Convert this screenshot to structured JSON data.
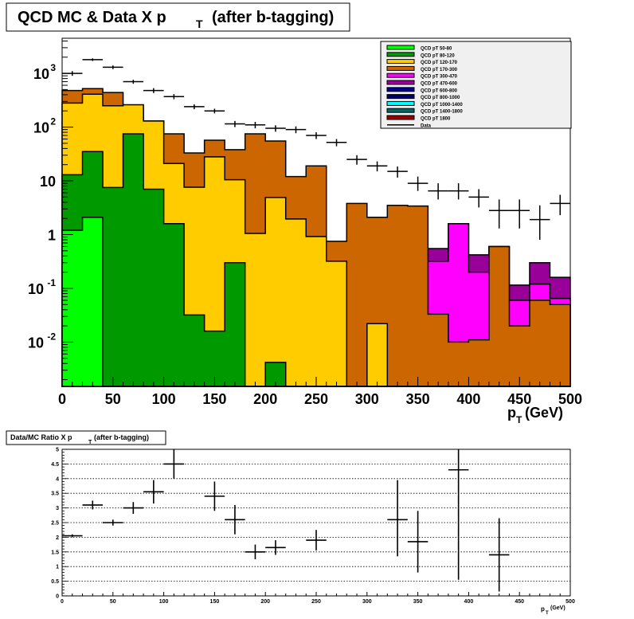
{
  "colors": {
    "background": "#ffffff",
    "frame": "#000000",
    "legend_bg": "#f0f0f0",
    "grid": "#000000"
  },
  "chart_data": [
    {
      "id": "main",
      "type": "area",
      "title": "QCD MC & Data X p",
      "title_sub": "T",
      "title_suffix": "(after b-tagging)",
      "xlabel": "p",
      "xlabel_sub": "T",
      "xlabel_unit": "(GeV)",
      "ylabel": "",
      "log_y": true,
      "stacked": true,
      "grid": false,
      "legend_placement": "top-right",
      "xlim": [
        0,
        500
      ],
      "ylim": [
        0.0015,
        4500
      ],
      "x_ticks": [
        0,
        50,
        100,
        150,
        200,
        250,
        300,
        350,
        400,
        450,
        500
      ],
      "y_ticks": [
        {
          "value": 0.01,
          "base": "10",
          "exp": "-2"
        },
        {
          "value": 0.1,
          "base": "10",
          "exp": "-1"
        },
        {
          "value": 1,
          "base": "1",
          "exp": ""
        },
        {
          "value": 10,
          "base": "10",
          "exp": ""
        },
        {
          "value": 100,
          "base": "10",
          "exp": "2"
        },
        {
          "value": 1000,
          "base": "10",
          "exp": "3"
        }
      ],
      "bin_edges": [
        0,
        20,
        40,
        60,
        80,
        100,
        120,
        140,
        160,
        180,
        200,
        220,
        240,
        260,
        280,
        300,
        320,
        340,
        360,
        380,
        400,
        420,
        440,
        460,
        480,
        500
      ],
      "stack_tops": [
        {
          "name": "QCD pT 50-80",
          "color": "#00ff00",
          "values": [
            1.2,
            2.1,
            0.0015,
            0.0015,
            0.0015,
            0.0015,
            0.0015,
            0.0015,
            0.0015,
            0.0015,
            0.0015,
            0.0015,
            0.0015,
            0.0015,
            0.0015,
            0.0015,
            0.0015,
            0.0015,
            0.0015,
            0.0015,
            0.0015,
            0.0015,
            0.0015,
            0.0015,
            0.0015
          ]
        },
        {
          "name": "QCD pT 80-120",
          "color": "#009900",
          "values": [
            13,
            35,
            7.5,
            75,
            7,
            1.6,
            0.032,
            0.016,
            0.3,
            0.0015,
            0.0042,
            0.0015,
            0.0015,
            0.0015,
            0.0015,
            0.0015,
            0.0015,
            0.0015,
            0.0015,
            0.0015,
            0.0015,
            0.0015,
            0.0015,
            0.0015,
            0.0015
          ]
        },
        {
          "name": "QCD pT 120-170",
          "color": "#ffcc00",
          "values": [
            280,
            410,
            250,
            260,
            130,
            21,
            7.6,
            28,
            10.5,
            1.05,
            4.9,
            1.95,
            0.92,
            0.32,
            0.0015,
            0.022,
            0.0015,
            0.0015,
            0.0015,
            0.0015,
            0.0015,
            0.0015,
            0.0015,
            0.0015,
            0.0015
          ]
        },
        {
          "name": "QCD pT 170-300",
          "color": "#cc6600",
          "values": [
            480,
            520,
            440,
            230,
            130,
            75,
            33,
            57,
            38,
            75,
            55,
            12,
            19,
            0.75,
            3.8,
            2.1,
            3.5,
            3.4,
            0.033,
            0.01,
            0.011,
            0.6,
            0.02,
            0.06,
            0.05
          ]
        },
        {
          "name": "QCD pT 300-470",
          "color": "#ff00ff",
          "values": [
            0,
            0,
            0,
            0,
            0,
            0,
            0,
            0,
            0,
            0,
            0,
            0,
            0,
            0,
            0,
            0,
            0,
            0,
            0.32,
            1.6,
            0.2,
            0.6,
            0.06,
            0.12,
            0.065
          ]
        },
        {
          "name": "QCD pT 470-600",
          "color": "#990099",
          "values": [
            0,
            0,
            0,
            0,
            0,
            0,
            0,
            0,
            0,
            0,
            0,
            0,
            0,
            0,
            0,
            0,
            0,
            0,
            0.55,
            1.6,
            0.42,
            0.6,
            0.115,
            0.3,
            0.16
          ]
        }
      ],
      "legend": [
        {
          "name": "QCD pT 50-80",
          "color": "#00ff00"
        },
        {
          "name": "QCD pT 80-120",
          "color": "#009900"
        },
        {
          "name": "QCD pT 120-170",
          "color": "#ffcc00"
        },
        {
          "name": "QCD pT 170-300",
          "color": "#cc6600"
        },
        {
          "name": "QCD pT 300-470",
          "color": "#ff00ff"
        },
        {
          "name": "QCD pT 470-600",
          "color": "#990099"
        },
        {
          "name": "QCD pT 600-800",
          "color": "#000099"
        },
        {
          "name": "QCD pT 800-1000",
          "color": "#000066"
        },
        {
          "name": "QCD pT 1000-1400",
          "color": "#00ffff"
        },
        {
          "name": "QCD pT 1400-1800",
          "color": "#006666"
        },
        {
          "name": "QCD pT 1800",
          "color": "#990000"
        },
        {
          "name": "Data",
          "color": "#000000",
          "is_line": true
        }
      ],
      "data_points": [
        {
          "x": 10,
          "y": 1000,
          "err_lo": 900,
          "err_hi": 1100
        },
        {
          "x": 30,
          "y": 1800,
          "err_lo": 1700,
          "err_hi": 1900
        },
        {
          "x": 50,
          "y": 1300,
          "err_lo": 1200,
          "err_hi": 1400
        },
        {
          "x": 70,
          "y": 700,
          "err_lo": 640,
          "err_hi": 760
        },
        {
          "x": 90,
          "y": 480,
          "err_lo": 430,
          "err_hi": 530
        },
        {
          "x": 110,
          "y": 370,
          "err_lo": 330,
          "err_hi": 410
        },
        {
          "x": 130,
          "y": 240,
          "err_lo": 215,
          "err_hi": 265
        },
        {
          "x": 150,
          "y": 200,
          "err_lo": 180,
          "err_hi": 220
        },
        {
          "x": 170,
          "y": 115,
          "err_lo": 100,
          "err_hi": 130
        },
        {
          "x": 190,
          "y": 110,
          "err_lo": 95,
          "err_hi": 125
        },
        {
          "x": 210,
          "y": 95,
          "err_lo": 82,
          "err_hi": 108
        },
        {
          "x": 230,
          "y": 90,
          "err_lo": 77,
          "err_hi": 103
        },
        {
          "x": 250,
          "y": 70,
          "err_lo": 60,
          "err_hi": 80
        },
        {
          "x": 270,
          "y": 52,
          "err_lo": 44,
          "err_hi": 60
        },
        {
          "x": 290,
          "y": 25,
          "err_lo": 20,
          "err_hi": 30
        },
        {
          "x": 310,
          "y": 19,
          "err_lo": 15,
          "err_hi": 23
        },
        {
          "x": 330,
          "y": 15,
          "err_lo": 11.5,
          "err_hi": 18.5
        },
        {
          "x": 350,
          "y": 9,
          "err_lo": 6.5,
          "err_hi": 12
        },
        {
          "x": 370,
          "y": 6.5,
          "err_lo": 4.5,
          "err_hi": 9
        },
        {
          "x": 390,
          "y": 6.5,
          "err_lo": 4.5,
          "err_hi": 9
        },
        {
          "x": 410,
          "y": 5,
          "err_lo": 3.2,
          "err_hi": 7
        },
        {
          "x": 430,
          "y": 2.8,
          "err_lo": 1.3,
          "err_hi": 4.5
        },
        {
          "x": 450,
          "y": 2.8,
          "err_lo": 1.3,
          "err_hi": 4.5
        },
        {
          "x": 470,
          "y": 1.9,
          "err_lo": 0.8,
          "err_hi": 3.5
        },
        {
          "x": 490,
          "y": 3.8,
          "err_lo": 2.3,
          "err_hi": 5.5
        }
      ]
    },
    {
      "id": "ratio",
      "type": "scatter",
      "title": "Data/MC Ratio X p",
      "title_sub": "T",
      "title_suffix": "(after b-tagging)",
      "xlabel": "p",
      "xlabel_sub": "T",
      "xlabel_unit": "(GeV)",
      "ylabel": "",
      "grid": true,
      "xlim": [
        0,
        500
      ],
      "ylim": [
        0,
        5
      ],
      "x_ticks": [
        0,
        50,
        100,
        150,
        200,
        250,
        300,
        350,
        400,
        450,
        500
      ],
      "y_ticks": [
        0,
        0.5,
        1,
        1.5,
        2,
        2.5,
        3,
        3.5,
        4,
        4.5,
        5
      ],
      "points": [
        {
          "x": 10,
          "y": 2.05,
          "x_lo": 0,
          "x_hi": 20,
          "err_lo": 2.0,
          "err_hi": 2.1
        },
        {
          "x": 30,
          "y": 3.1,
          "x_lo": 20,
          "x_hi": 40,
          "err_lo": 2.95,
          "err_hi": 3.25
        },
        {
          "x": 50,
          "y": 2.5,
          "x_lo": 40,
          "x_hi": 60,
          "err_lo": 2.4,
          "err_hi": 2.6
        },
        {
          "x": 70,
          "y": 3.0,
          "x_lo": 60,
          "x_hi": 80,
          "err_lo": 2.8,
          "err_hi": 3.2
        },
        {
          "x": 90,
          "y": 3.55,
          "x_lo": 80,
          "x_hi": 100,
          "err_lo": 3.15,
          "err_hi": 3.95
        },
        {
          "x": 110,
          "y": 4.5,
          "x_lo": 100,
          "x_hi": 120,
          "err_lo": 4.0,
          "err_hi": 5.0
        },
        {
          "x": 150,
          "y": 3.4,
          "x_lo": 140,
          "x_hi": 160,
          "err_lo": 2.9,
          "err_hi": 3.9
        },
        {
          "x": 170,
          "y": 2.6,
          "x_lo": 160,
          "x_hi": 180,
          "err_lo": 2.1,
          "err_hi": 3.1
        },
        {
          "x": 190,
          "y": 1.5,
          "x_lo": 180,
          "x_hi": 200,
          "err_lo": 1.25,
          "err_hi": 1.75
        },
        {
          "x": 210,
          "y": 1.65,
          "x_lo": 200,
          "x_hi": 220,
          "err_lo": 1.4,
          "err_hi": 1.9
        },
        {
          "x": 250,
          "y": 1.9,
          "x_lo": 240,
          "x_hi": 260,
          "err_lo": 1.55,
          "err_hi": 2.25
        },
        {
          "x": 330,
          "y": 2.6,
          "x_lo": 320,
          "x_hi": 340,
          "err_lo": 1.35,
          "err_hi": 3.95
        },
        {
          "x": 350,
          "y": 1.85,
          "x_lo": 340,
          "x_hi": 360,
          "err_lo": 0.8,
          "err_hi": 2.9
        },
        {
          "x": 390,
          "y": 4.3,
          "x_lo": 380,
          "x_hi": 400,
          "err_lo": 0.55,
          "err_hi": 5.0
        },
        {
          "x": 430,
          "y": 1.4,
          "x_lo": 420,
          "x_hi": 440,
          "err_lo": 0.15,
          "err_hi": 2.65
        }
      ]
    }
  ]
}
